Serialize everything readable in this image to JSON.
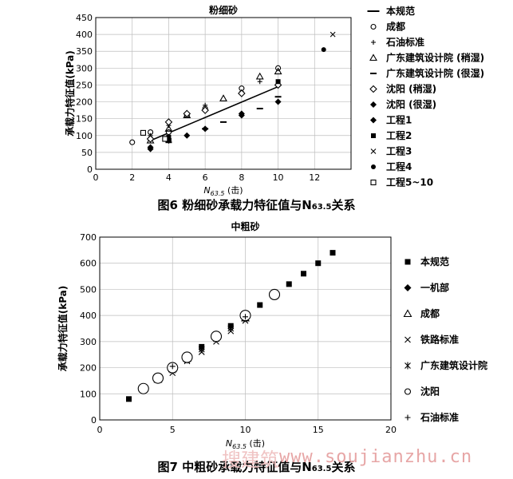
{
  "chart_data": [
    {
      "type": "scatter",
      "title": "粉细砂",
      "xlabel": "N63.5 (击)",
      "xlabel_main": "N",
      "xlabel_sub": "63.5",
      "xlabel_unit": " (击)",
      "ylabel": "承载力特征值(kPa)",
      "xlim": [
        0,
        14
      ],
      "ylim": [
        0,
        450
      ],
      "xticks": [
        0,
        2,
        4,
        6,
        8,
        10,
        12
      ],
      "yticks": [
        0,
        50,
        100,
        150,
        200,
        250,
        300,
        350,
        400,
        450
      ],
      "grid": true,
      "legend_position": "right",
      "fit_line": {
        "name": "本规范",
        "x": [
          3,
          10
        ],
        "y": [
          85,
          245
        ]
      },
      "series": [
        {
          "name": "本规范",
          "marker": "line",
          "points": []
        },
        {
          "name": "成都",
          "marker": "circle-open",
          "points": [
            [
              2,
              80
            ],
            [
              3,
              110
            ],
            [
              3,
              90
            ],
            [
              4,
              110
            ],
            [
              5,
              160
            ],
            [
              6,
              180
            ],
            [
              8,
              240
            ],
            [
              10,
              300
            ]
          ]
        },
        {
          "name": "石油标准",
          "marker": "plus",
          "points": [
            [
              3,
              100
            ],
            [
              4,
              130
            ],
            [
              6,
              190
            ],
            [
              8,
              230
            ],
            [
              9,
              260
            ]
          ]
        },
        {
          "name": "广东建筑设计院 (稍湿)",
          "marker": "triangle-open",
          "points": [
            [
              3,
              85
            ],
            [
              4,
              120
            ],
            [
              5,
              160
            ],
            [
              7,
              210
            ],
            [
              9,
              275
            ],
            [
              10,
              290
            ]
          ]
        },
        {
          "name": "广东建筑设计院 (很湿)",
          "marker": "dash",
          "points": [
            [
              4,
              80
            ],
            [
              6,
              120
            ],
            [
              7,
              140
            ],
            [
              9,
              180
            ],
            [
              10,
              215
            ]
          ]
        },
        {
          "name": "沈阳 (稍湿)",
          "marker": "diamond-open",
          "points": [
            [
              3,
              90
            ],
            [
              4,
              140
            ],
            [
              5,
              165
            ],
            [
              6,
              175
            ],
            [
              8,
              225
            ],
            [
              10,
              250
            ]
          ]
        },
        {
          "name": "沈阳 (很湿)",
          "marker": "diamond-filled",
          "points": [
            [
              3,
              60
            ],
            [
              4,
              90
            ],
            [
              5,
              100
            ],
            [
              6,
              120
            ],
            [
              8,
              160
            ],
            [
              10,
              200
            ]
          ]
        },
        {
          "name": "工程1",
          "marker": "diamond-filled",
          "points": [
            [
              3,
              65
            ],
            [
              4,
              85
            ],
            [
              8,
              165
            ]
          ]
        },
        {
          "name": "工程2",
          "marker": "square-filled",
          "points": [
            [
              10,
              260
            ],
            [
              4,
              95
            ]
          ]
        },
        {
          "name": "工程3",
          "marker": "x",
          "points": [
            [
              13,
              400
            ]
          ]
        },
        {
          "name": "工程4",
          "marker": "circle-filled",
          "points": [
            [
              12.5,
              355
            ]
          ]
        },
        {
          "name": "工程5~10",
          "marker": "square-open",
          "points": [
            [
              2.6,
              108
            ],
            [
              3.8,
              90
            ]
          ]
        }
      ]
    },
    {
      "type": "scatter",
      "title": "中粗砂",
      "xlabel": "N63.5 (击)",
      "xlabel_main": "N",
      "xlabel_sub": "63.5",
      "xlabel_unit": " (击)",
      "ylabel": "承载力特征值(kPa)",
      "xlim": [
        0,
        20
      ],
      "ylim": [
        0,
        700
      ],
      "xticks": [
        0,
        5,
        10,
        15,
        20
      ],
      "yticks": [
        0,
        100,
        200,
        300,
        400,
        500,
        600,
        700
      ],
      "grid": true,
      "legend_position": "right",
      "series": [
        {
          "name": "本规范",
          "marker": "square-filled",
          "points": [
            [
              2,
              80
            ],
            [
              3,
              120
            ],
            [
              4,
              160
            ],
            [
              5,
              200
            ],
            [
              6,
              240
            ],
            [
              7,
              280
            ],
            [
              8,
              320
            ],
            [
              9,
              360
            ],
            [
              10,
              400
            ],
            [
              11,
              440
            ],
            [
              12,
              480
            ],
            [
              13,
              520
            ],
            [
              14,
              560
            ],
            [
              15,
              600
            ],
            [
              16,
              640
            ]
          ]
        },
        {
          "name": "一机部",
          "marker": "diamond-filled",
          "points": [
            [
              3,
              120
            ],
            [
              4,
              160
            ],
            [
              5,
              200
            ],
            [
              6,
              240
            ],
            [
              8,
              320
            ],
            [
              10,
              400
            ]
          ]
        },
        {
          "name": "成都",
          "marker": "triangle-open",
          "points": [
            [
              4,
              155
            ],
            [
              5,
              195
            ],
            [
              6,
              235
            ],
            [
              8,
              325
            ],
            [
              10,
              390
            ]
          ]
        },
        {
          "name": "铁路标准",
          "marker": "x",
          "points": [
            [
              5,
              180
            ],
            [
              6,
              225
            ],
            [
              7,
              260
            ],
            [
              8,
              300
            ],
            [
              9,
              340
            ],
            [
              10,
              380
            ]
          ]
        },
        {
          "name": "广东建筑设计院",
          "marker": "asterisk",
          "points": [
            [
              5,
              190
            ],
            [
              6,
              230
            ],
            [
              7,
              270
            ],
            [
              8,
              310
            ],
            [
              9,
              350
            ],
            [
              10,
              390
            ]
          ]
        },
        {
          "name": "沈阳",
          "marker": "circle-open",
          "points": [
            [
              3,
              120
            ],
            [
              4,
              160
            ],
            [
              5,
              200
            ],
            [
              6,
              240
            ],
            [
              8,
              320
            ],
            [
              10,
              400
            ],
            [
              12,
              480
            ]
          ]
        },
        {
          "name": "石油标准",
          "marker": "plus",
          "points": [
            [
              5,
              205
            ],
            [
              10,
              395
            ]
          ]
        }
      ]
    }
  ],
  "captions": {
    "fig6_main": "图6   粉细砂承载力特征值与N",
    "fig6_sub": "63.5",
    "fig6_tail": "关系",
    "fig7_main": "图7   中粗砂承载力特征值与N",
    "fig7_sub": "63.5",
    "fig7_tail": "关系"
  },
  "watermark": {
    "text": "www.soujianzhu.cn",
    "cjk": "搜建筑"
  }
}
